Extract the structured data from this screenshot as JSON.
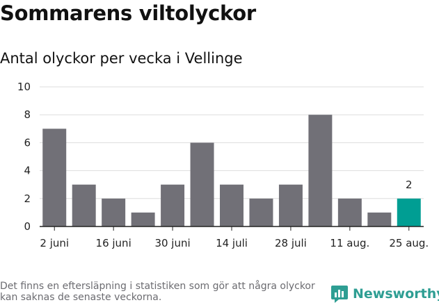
{
  "title": "Sommarens viltolyckor",
  "subtitle": "Antal olyckor per vecka i Vellinge",
  "footnote": "Det finns en eftersläpning i statistiken som gör att några olyckor kan saknas de senaste veckorna.",
  "brand": "Newsworthy",
  "colors": {
    "bar": "#717077",
    "highlight": "#009e93",
    "grid": "#dddddd",
    "axis": "#222222",
    "brand": "#2e9e93"
  },
  "chart_data": {
    "type": "bar",
    "values": [
      7,
      3,
      2,
      1,
      3,
      6,
      3,
      2,
      3,
      8,
      2,
      1,
      2
    ],
    "x_tick_labels": [
      "2 juni",
      "16 juni",
      "30 juni",
      "14 juli",
      "28 juli",
      "11 aug.",
      "25 aug."
    ],
    "x_tick_positions": [
      0,
      2,
      4,
      6,
      8,
      10,
      12
    ],
    "highlight_index": 12,
    "data_labels": [
      {
        "index": 12,
        "label": "2"
      }
    ],
    "ylim": [
      0,
      10
    ],
    "yticks": [
      0,
      2,
      4,
      6,
      8,
      10
    ],
    "grid": true
  }
}
